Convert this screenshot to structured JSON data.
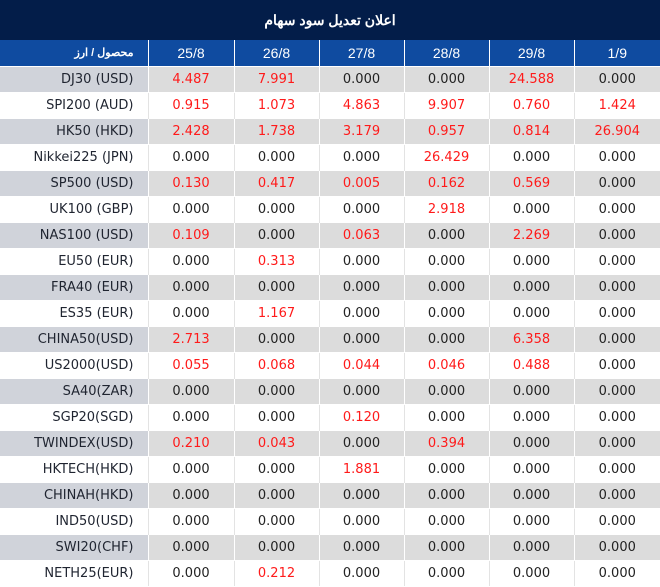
{
  "title": "اعلان تعدیل سود سهام",
  "header": {
    "product_label": "محصول / ارز",
    "dates": [
      "25/8",
      "26/8",
      "27/8",
      "28/8",
      "29/8",
      "1/9"
    ]
  },
  "colors": {
    "title_bg": "#031d49",
    "header_bg": "#0f4ba0",
    "highlight_value": "#ff1a1a",
    "zero_value": "#222222",
    "shaded_row": "#dcdcdc",
    "shaded_first_col": "#d0d3da"
  },
  "rows": [
    {
      "symbol": "DJ30 (USD)",
      "values": [
        "4.487",
        "7.991",
        "0.000",
        "0.000",
        "24.588",
        "0.000"
      ]
    },
    {
      "symbol": "SPI200 (AUD)",
      "values": [
        "0.915",
        "1.073",
        "4.863",
        "9.907",
        "0.760",
        "1.424"
      ]
    },
    {
      "symbol": "HK50 (HKD)",
      "values": [
        "2.428",
        "1.738",
        "3.179",
        "0.957",
        "0.814",
        "26.904"
      ]
    },
    {
      "symbol": "Nikkei225 (JPN)",
      "values": [
        "0.000",
        "0.000",
        "0.000",
        "26.429",
        "0.000",
        "0.000"
      ]
    },
    {
      "symbol": "SP500 (USD)",
      "values": [
        "0.130",
        "0.417",
        "0.005",
        "0.162",
        "0.569",
        "0.000"
      ]
    },
    {
      "symbol": "UK100 (GBP)",
      "values": [
        "0.000",
        "0.000",
        "0.000",
        "2.918",
        "0.000",
        "0.000"
      ]
    },
    {
      "symbol": "NAS100 (USD)",
      "values": [
        "0.109",
        "0.000",
        "0.063",
        "0.000",
        "2.269",
        "0.000"
      ]
    },
    {
      "symbol": "EU50 (EUR)",
      "values": [
        "0.000",
        "0.313",
        "0.000",
        "0.000",
        "0.000",
        "0.000"
      ]
    },
    {
      "symbol": "FRA40 (EUR)",
      "values": [
        "0.000",
        "0.000",
        "0.000",
        "0.000",
        "0.000",
        "0.000"
      ]
    },
    {
      "symbol": "ES35 (EUR)",
      "values": [
        "0.000",
        "1.167",
        "0.000",
        "0.000",
        "0.000",
        "0.000"
      ]
    },
    {
      "symbol": "CHINA50(USD)",
      "values": [
        "2.713",
        "0.000",
        "0.000",
        "0.000",
        "6.358",
        "0.000"
      ]
    },
    {
      "symbol": "US2000(USD)",
      "values": [
        "0.055",
        "0.068",
        "0.044",
        "0.046",
        "0.488",
        "0.000"
      ]
    },
    {
      "symbol": "SA40(ZAR)",
      "values": [
        "0.000",
        "0.000",
        "0.000",
        "0.000",
        "0.000",
        "0.000"
      ]
    },
    {
      "symbol": "SGP20(SGD)",
      "values": [
        "0.000",
        "0.000",
        "0.120",
        "0.000",
        "0.000",
        "0.000"
      ]
    },
    {
      "symbol": "TWINDEX(USD)",
      "values": [
        "0.210",
        "0.043",
        "0.000",
        "0.394",
        "0.000",
        "0.000"
      ]
    },
    {
      "symbol": "HKTECH(HKD)",
      "values": [
        "0.000",
        "0.000",
        "1.881",
        "0.000",
        "0.000",
        "0.000"
      ]
    },
    {
      "symbol": "CHINAH(HKD)",
      "values": [
        "0.000",
        "0.000",
        "0.000",
        "0.000",
        "0.000",
        "0.000"
      ]
    },
    {
      "symbol": "IND50(USD)",
      "values": [
        "0.000",
        "0.000",
        "0.000",
        "0.000",
        "0.000",
        "0.000"
      ]
    },
    {
      "symbol": "SWI20(CHF)",
      "values": [
        "0.000",
        "0.000",
        "0.000",
        "0.000",
        "0.000",
        "0.000"
      ]
    },
    {
      "symbol": "NETH25(EUR)",
      "values": [
        "0.000",
        "0.212",
        "0.000",
        "0.000",
        "0.000",
        "0.000"
      ]
    }
  ]
}
